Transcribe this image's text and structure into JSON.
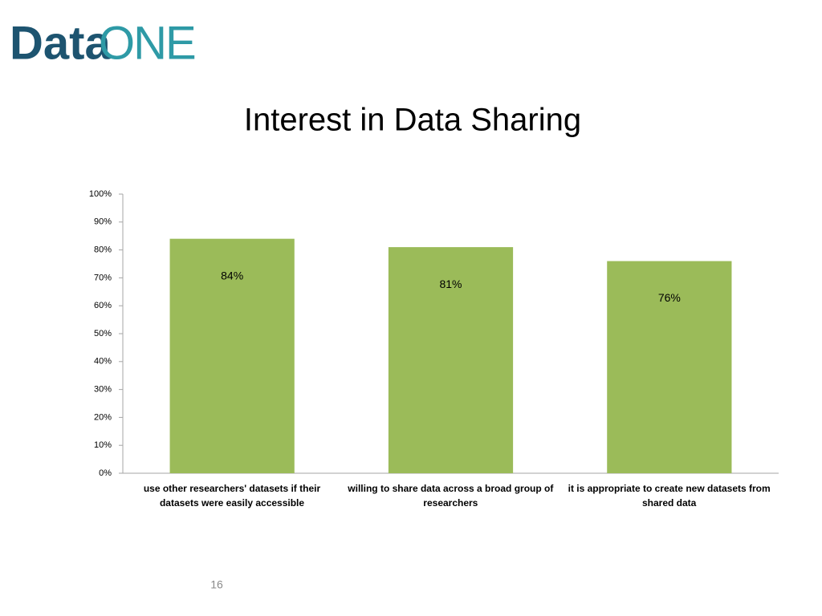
{
  "logo_parts": [
    "Data",
    "ONE"
  ],
  "slide_number": "16",
  "chart_data": {
    "type": "bar",
    "title": "Interest in Data Sharing",
    "categories": [
      "use other researchers' datasets if their datasets were easily accessible",
      "willing to share data across a broad group of researchers",
      "it is appropriate to create new datasets from shared data"
    ],
    "values": [
      84,
      81,
      76
    ],
    "value_labels": [
      "84%",
      "81%",
      "76%"
    ],
    "color": "#9bbb59",
    "ylim": [
      0,
      100
    ],
    "yticks": [
      {
        "value": 0,
        "label": "0%"
      },
      {
        "value": 10,
        "label": "10%"
      },
      {
        "value": 20,
        "label": "20%"
      },
      {
        "value": 30,
        "label": "30%"
      },
      {
        "value": 40,
        "label": "40%"
      },
      {
        "value": 50,
        "label": "50%"
      },
      {
        "value": 60,
        "label": "60%"
      },
      {
        "value": 70,
        "label": "70%"
      },
      {
        "value": 80,
        "label": "80%"
      },
      {
        "value": 90,
        "label": "90%"
      },
      {
        "value": 100,
        "label": "100%"
      }
    ],
    "grid": false
  }
}
